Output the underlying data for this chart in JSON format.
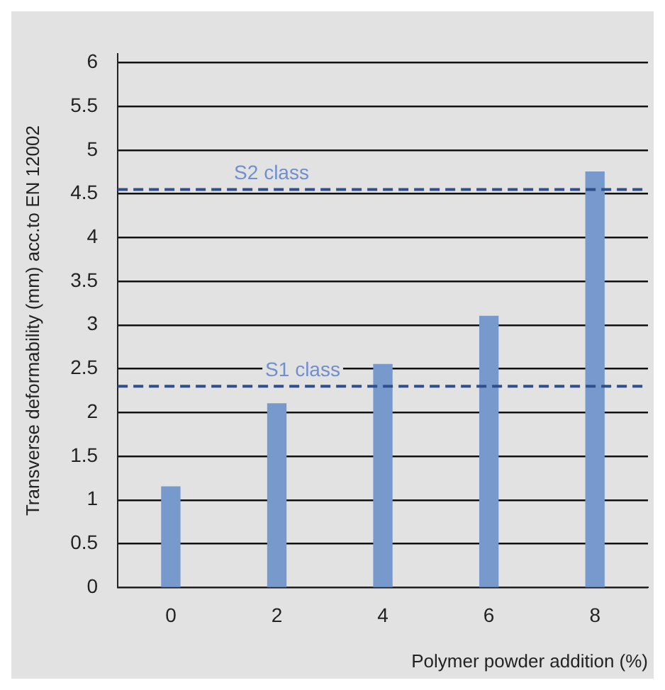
{
  "chart_data": {
    "type": "bar",
    "xlabel": "Polymer powder addition (%)",
    "ylabel": "Transverse deformability (mm) acc.to EN 12002",
    "categories": [
      "0",
      "2",
      "4",
      "6",
      "8"
    ],
    "values": [
      1.15,
      2.1,
      2.55,
      3.1,
      4.75
    ],
    "color": "#7799cc",
    "ylim": [
      0,
      6.1
    ],
    "yticks": [
      0,
      0.5,
      1,
      1.5,
      2,
      2.5,
      3,
      3.5,
      4,
      4.5,
      5,
      5.5,
      6
    ],
    "grid": "y",
    "ref_lines": [
      {
        "axis": "y",
        "value": 4.55,
        "label": "S2 class",
        "color": "#2f4f8f",
        "line_style": "dashed"
      },
      {
        "axis": "y",
        "value": 2.3,
        "label": "S1 class",
        "color": "#2f4f8f",
        "line_style": "dashed"
      }
    ]
  }
}
